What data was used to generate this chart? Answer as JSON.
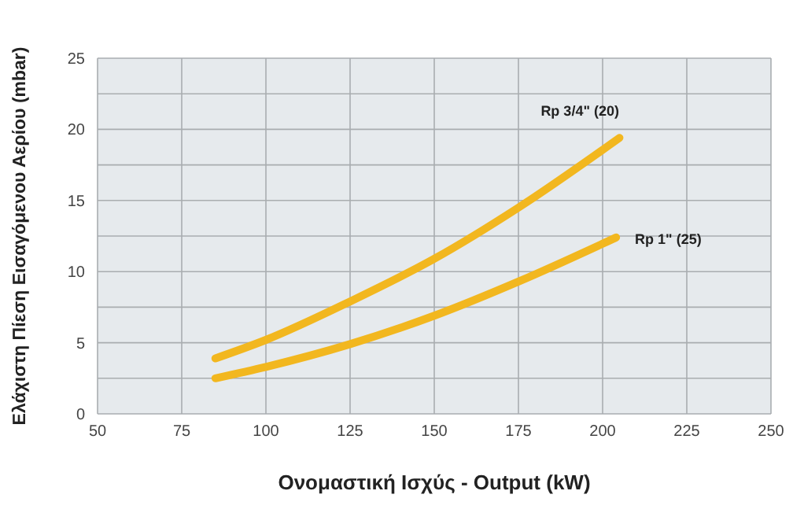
{
  "chart_data": {
    "type": "line",
    "xlabel": "Ονομαστική Ισχύς - Output (kW)",
    "ylabel": "Ελάχιστη Πίεση Εισαγόμενου Αερίου (mbar)",
    "xlim": [
      50,
      250
    ],
    "xticks": [
      50,
      75,
      100,
      125,
      150,
      175,
      200,
      225,
      250
    ],
    "ylim": [
      0,
      25
    ],
    "yticks": [
      0,
      {
        "value": 2.5,
        "label": null
      },
      5,
      {
        "value": 7.5,
        "label": null
      },
      10,
      {
        "value": 12.5,
        "label": null
      },
      15,
      {
        "value": 17.5,
        "label": null
      },
      20,
      {
        "value": 22.5,
        "label": null
      },
      25
    ],
    "grid": true,
    "marker": "none",
    "line_style": "solid",
    "series": [
      {
        "name": "Rp 3/4\" (20)",
        "color": "#f2b71f",
        "x": [
          85,
          100,
          125,
          150,
          175,
          205
        ],
        "values": [
          3.9,
          5.2,
          7.9,
          10.9,
          14.5,
          19.4
        ]
      },
      {
        "name": "Rp 1\" (25)",
        "color": "#f2b71f",
        "x": [
          85,
          100,
          125,
          150,
          175,
          204
        ],
        "values": [
          2.5,
          3.3,
          4.9,
          6.9,
          9.3,
          12.4
        ]
      }
    ]
  }
}
